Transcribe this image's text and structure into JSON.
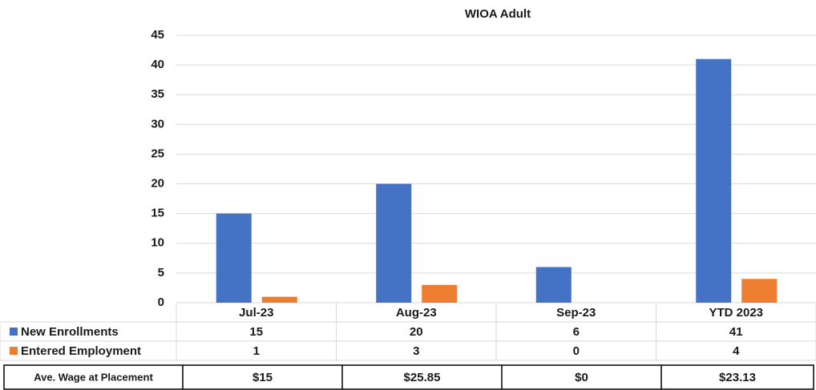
{
  "chart_data": {
    "type": "bar",
    "title": "WIOA Adult",
    "categories": [
      "Jul-23",
      "Aug-23",
      "Sep-23",
      "YTD 2023"
    ],
    "series": [
      {
        "name": "New Enrollments",
        "color": "#4472c4",
        "values": [
          15,
          20,
          6,
          41
        ]
      },
      {
        "name": "Entered Employment",
        "color": "#ed7d31",
        "values": [
          1,
          3,
          0,
          4
        ]
      }
    ],
    "ylim": [
      0,
      45
    ],
    "yticks": [
      0,
      5,
      10,
      15,
      20,
      25,
      30,
      35,
      40,
      45
    ],
    "grid": true
  },
  "wage_table": {
    "label": "Ave. Wage at Placement",
    "values": [
      "$15",
      "$25.85",
      "$0",
      "$23.13"
    ]
  }
}
